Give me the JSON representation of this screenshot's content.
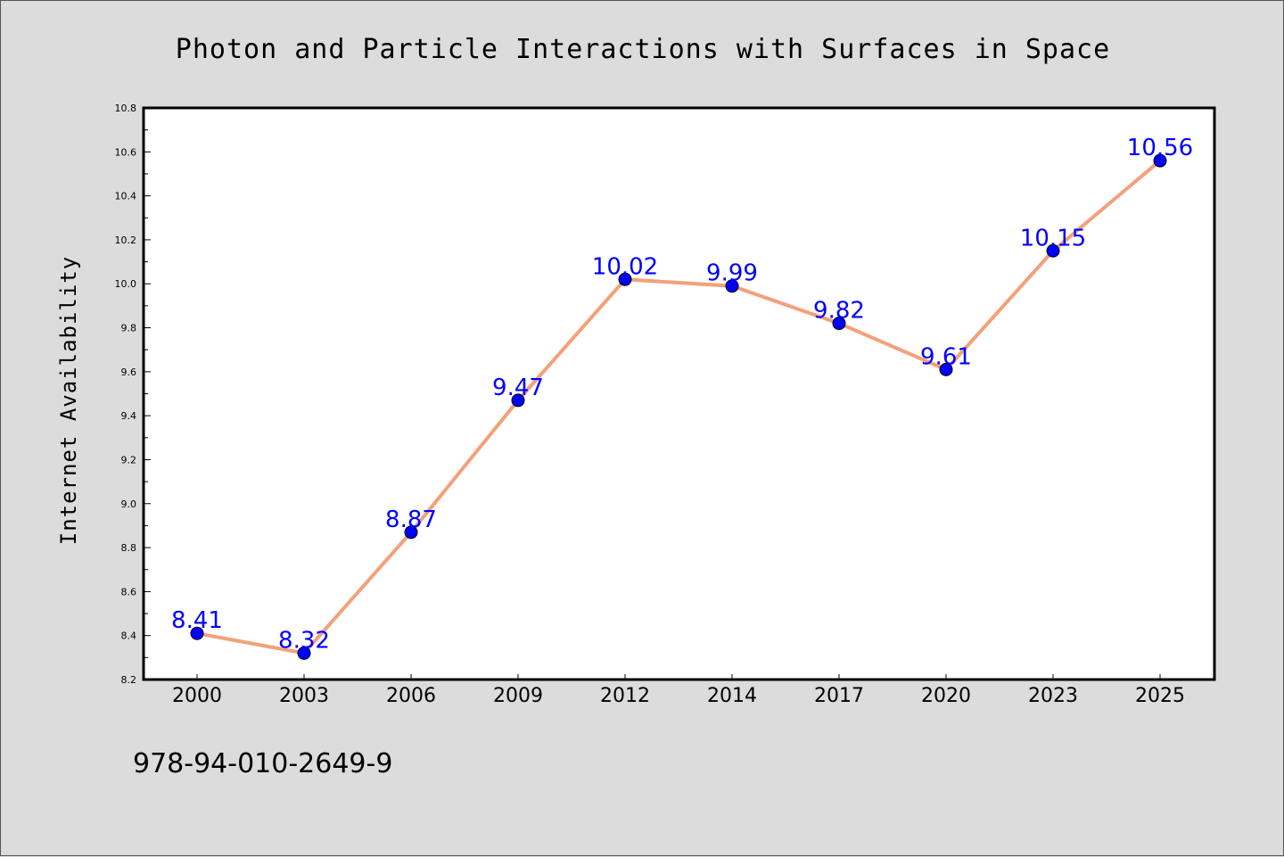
{
  "colors": {
    "background": "#dcdcdc",
    "plot_background": "#ffffff",
    "line": "#f4a07a",
    "marker": "#0000ff",
    "data_label": "#0000ff",
    "text": "#000000"
  },
  "footer_code": "978-94-010-2649-9",
  "chart_data": {
    "type": "line",
    "title": "Photon and Particle Interactions with Surfaces in Space",
    "xlabel": "",
    "ylabel": "Internet Availability",
    "categories": [
      "2000",
      "2003",
      "2006",
      "2009",
      "2012",
      "2014",
      "2017",
      "2020",
      "2023",
      "2025"
    ],
    "series": [
      {
        "values": [
          8.41,
          8.32,
          8.87,
          9.47,
          10.02,
          9.99,
          9.82,
          9.61,
          10.15,
          10.56
        ],
        "data_labels": [
          "8.41",
          "8.32",
          "8.87",
          "9.47",
          "10.02",
          "9.99",
          "9.82",
          "9.61",
          "10.15",
          "10.56"
        ]
      }
    ],
    "ylim": [
      8.2,
      10.8
    ],
    "yticks": [
      8.2,
      8.4,
      8.6,
      8.8,
      9.0,
      9.2,
      9.4,
      9.6,
      9.8,
      10.0,
      10.2,
      10.4,
      10.6,
      10.8
    ],
    "ytick_labels": [
      "8.2",
      "8.4",
      "8.6",
      "8.8",
      "9.0",
      "9.2",
      "9.4",
      "9.6",
      "9.8",
      "10.0",
      "10.2",
      "10.4",
      "10.6",
      "10.8"
    ],
    "grid": false,
    "legend": "none"
  }
}
